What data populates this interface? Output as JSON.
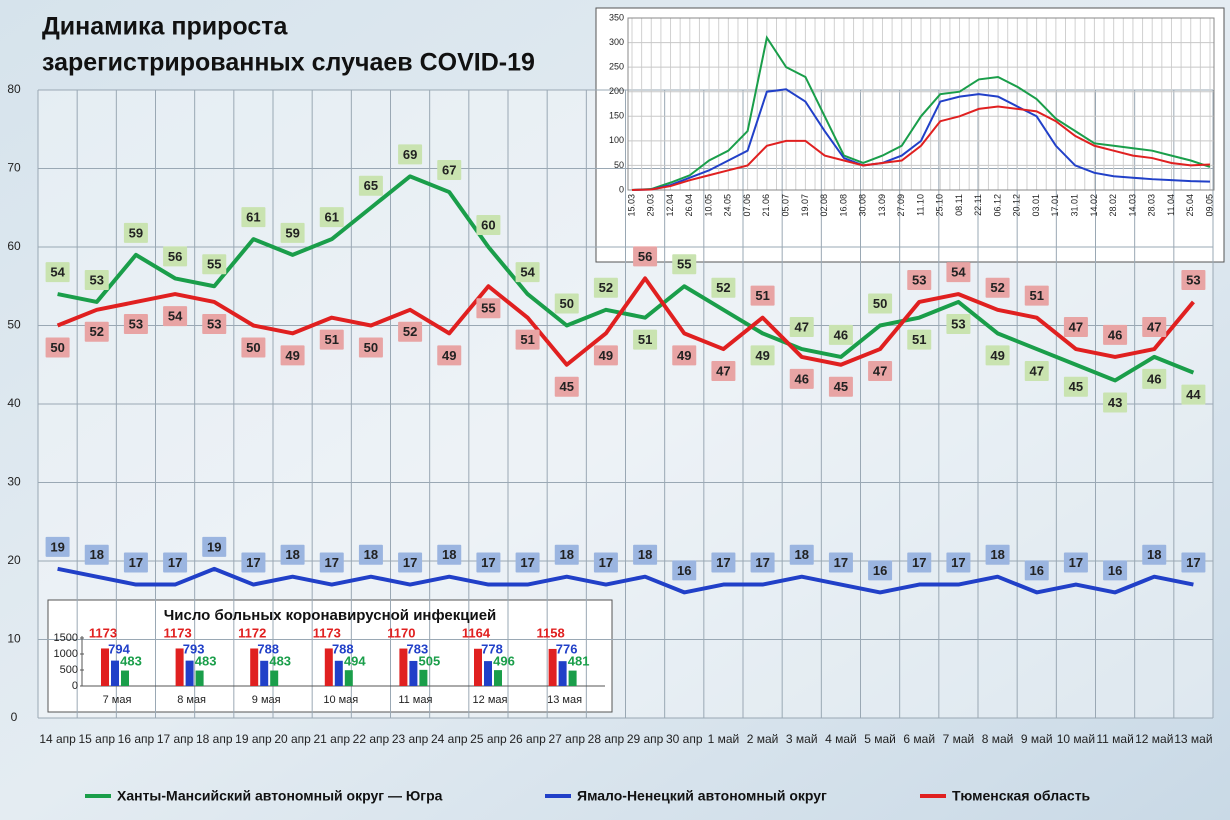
{
  "chart_data": [
    {
      "type": "line",
      "title": [
        "Динамика прироста",
        "зарегистрированных случаев COVID-19"
      ],
      "categories": [
        "14 апр",
        "15 апр",
        "16 апр",
        "17 апр",
        "18 апр",
        "19 апр",
        "20 апр",
        "21 апр",
        "22 апр",
        "23 апр",
        "24 апр",
        "25 апр",
        "26 апр",
        "27 апр",
        "28 апр",
        "29 апр",
        "30 апр",
        "1 май",
        "2 май",
        "3 май",
        "4 май",
        "5 май",
        "6 май",
        "7 май",
        "8 май",
        "9 май",
        "10 май",
        "11 май",
        "12 май",
        "13 май"
      ],
      "series": [
        {
          "name": "Ханты-Мансийский автономный округ — Югра",
          "color": "#1a9e4a",
          "label_color": "#c9e3b0",
          "values": [
            54,
            53,
            59,
            56,
            55,
            61,
            59,
            61,
            65,
            69,
            67,
            60,
            54,
            50,
            52,
            51,
            55,
            52,
            49,
            47,
            46,
            50,
            51,
            53,
            49,
            47,
            45,
            43,
            46,
            44
          ]
        },
        {
          "name": "Ямало-Ненецкий автономный округ",
          "color": "#2140c8",
          "label_color": "#9bb5e0",
          "values": [
            19,
            18,
            17,
            17,
            19,
            17,
            18,
            17,
            18,
            17,
            18,
            17,
            17,
            18,
            17,
            18,
            16,
            17,
            17,
            18,
            17,
            16,
            17,
            17,
            18,
            16,
            17,
            16,
            18,
            17
          ]
        },
        {
          "name": "Тюменская область",
          "color": "#e02020",
          "label_color": "#e8a4a4",
          "values": [
            50,
            52,
            53,
            54,
            53,
            50,
            49,
            51,
            50,
            52,
            49,
            55,
            51,
            45,
            49,
            56,
            49,
            47,
            51,
            46,
            45,
            47,
            53,
            54,
            52,
            51,
            47,
            46,
            47,
            53
          ]
        }
      ],
      "ylim": [
        0,
        80
      ],
      "yticks": [
        0,
        10,
        20,
        30,
        40,
        50,
        60,
        70,
        80
      ],
      "grid": true,
      "legend": "bottom"
    },
    {
      "type": "line",
      "categories": [
        "15.03",
        "29.03",
        "12.04",
        "26.04",
        "10.05",
        "24.05",
        "07.06",
        "21.06",
        "05.07",
        "19.07",
        "02.08",
        "16.08",
        "30.08",
        "13.09",
        "27.09",
        "11.10",
        "25.10",
        "08.11",
        "22.11",
        "06.12",
        "20.12",
        "03.01",
        "17.01",
        "31.01",
        "14.02",
        "28.02",
        "14.03",
        "28.03",
        "11.04",
        "25.04",
        "09.05"
      ],
      "series": [
        {
          "color": "#1a9e4a",
          "values": [
            0,
            2,
            15,
            30,
            60,
            80,
            120,
            310,
            250,
            230,
            150,
            70,
            55,
            70,
            90,
            150,
            195,
            200,
            225,
            230,
            210,
            185,
            145,
            120,
            95,
            90,
            85,
            80,
            70,
            60,
            47
          ]
        },
        {
          "color": "#2140c8",
          "values": [
            0,
            1,
            10,
            25,
            40,
            60,
            80,
            200,
            205,
            180,
            120,
            65,
            50,
            55,
            70,
            100,
            180,
            190,
            195,
            190,
            170,
            150,
            90,
            50,
            35,
            28,
            25,
            22,
            20,
            18,
            17
          ]
        },
        {
          "color": "#e02020",
          "values": [
            0,
            1,
            8,
            20,
            30,
            40,
            50,
            90,
            100,
            100,
            70,
            60,
            50,
            55,
            60,
            90,
            140,
            150,
            165,
            170,
            165,
            160,
            140,
            110,
            90,
            80,
            70,
            65,
            55,
            50,
            52
          ]
        }
      ],
      "ylim": [
        0,
        350
      ],
      "yticks": [
        0,
        50,
        100,
        150,
        200,
        250,
        300,
        350
      ],
      "grid": true
    },
    {
      "type": "bar",
      "title": "Число больных коронавирусной инфекцией",
      "categories": [
        "7 мая",
        "8 мая",
        "9 мая",
        "10 мая",
        "11 мая",
        "12 мая",
        "13 мая"
      ],
      "series": [
        {
          "color": "#e02020",
          "values": [
            1173,
            1173,
            1172,
            1173,
            1170,
            1164,
            1158
          ]
        },
        {
          "color": "#2140c8",
          "values": [
            794,
            793,
            788,
            788,
            783,
            778,
            776
          ]
        },
        {
          "color": "#1a9e4a",
          "values": [
            483,
            483,
            483,
            494,
            505,
            496,
            481
          ]
        }
      ],
      "ylim": [
        0,
        1500
      ],
      "yticks": [
        0,
        500,
        1000,
        1500
      ]
    }
  ]
}
